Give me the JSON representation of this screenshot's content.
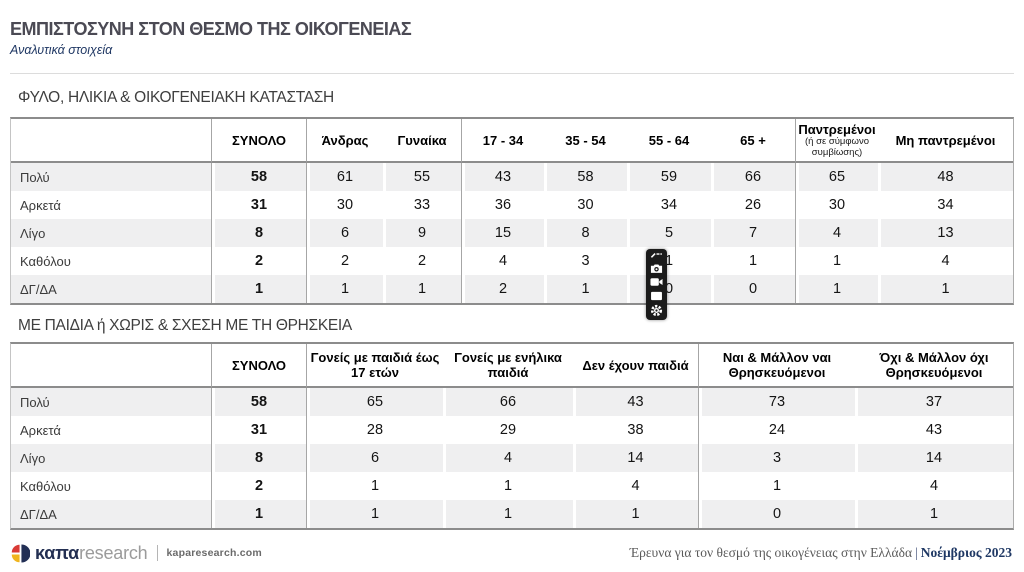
{
  "header": {
    "title": "ΕΜΠΙΣΤΟΣΥΝΗ ΣΤΟΝ ΘΕΣΜΟ ΤΗΣ ΟΙΚΟΓΕΝΕΙΑΣ",
    "subtitle": "Αναλυτικά στοιχεία"
  },
  "sections": [
    {
      "title": "ΦΥΛΟ, ΗΛΙΚΙΑ & ΟΙΚΟΓΕΝΕΙΑΚΗ ΚΑΤΑΣΤΑΣΗ",
      "table": {
        "columns": [
          {
            "label": ""
          },
          {
            "label": "ΣΥΝΟΛΟ"
          },
          {
            "label": "Άνδρας"
          },
          {
            "label": "Γυναίκα"
          },
          {
            "label": "17 - 34"
          },
          {
            "label": "35 - 54"
          },
          {
            "label": "55 - 64"
          },
          {
            "label": "65 +"
          },
          {
            "label": "Παντρεμένοι",
            "sub": "(ή σε σύμφωνο συμβίωσης)"
          },
          {
            "label": "Μη παντρεμένοι"
          }
        ],
        "rows": [
          {
            "label": "Πολύ",
            "values": [
              58,
              61,
              55,
              43,
              58,
              59,
              66,
              65,
              48
            ]
          },
          {
            "label": "Αρκετά",
            "values": [
              31,
              30,
              33,
              36,
              30,
              34,
              26,
              30,
              34
            ]
          },
          {
            "label": "Λίγο",
            "values": [
              8,
              6,
              9,
              15,
              8,
              5,
              7,
              4,
              13
            ]
          },
          {
            "label": "Καθόλου",
            "values": [
              2,
              2,
              2,
              4,
              3,
              1,
              1,
              1,
              4
            ]
          },
          {
            "label": "ΔΓ/ΔΑ",
            "values": [
              1,
              1,
              1,
              2,
              1,
              0,
              0,
              1,
              1
            ]
          }
        ]
      }
    },
    {
      "title": "ΜΕ ΠΑΙΔΙΑ ή ΧΩΡΙΣ & ΣΧΕΣΗ ΜΕ ΤΗ ΘΡΗΣΚΕΙΑ",
      "table": {
        "columns": [
          {
            "label": ""
          },
          {
            "label": "ΣΥΝΟΛΟ"
          },
          {
            "label": "Γονείς με παιδιά έως 17 ετών"
          },
          {
            "label": "Γονείς με ενήλικα παιδιά"
          },
          {
            "label": "Δεν έχουν παιδιά"
          },
          {
            "label": "Ναι & Μάλλον ναι Θρησκευόμενοι"
          },
          {
            "label": "Όχι & Μάλλον όχι Θρησκευόμενοι"
          }
        ],
        "rows": [
          {
            "label": "Πολύ",
            "values": [
              58,
              65,
              66,
              43,
              73,
              37
            ]
          },
          {
            "label": "Αρκετά",
            "values": [
              31,
              28,
              29,
              38,
              24,
              43
            ]
          },
          {
            "label": "Λίγο",
            "values": [
              8,
              6,
              4,
              14,
              3,
              14
            ]
          },
          {
            "label": "Καθόλου",
            "values": [
              2,
              1,
              1,
              4,
              1,
              4
            ]
          },
          {
            "label": "ΔΓ/ΔΑ",
            "values": [
              1,
              1,
              1,
              1,
              0,
              1
            ]
          }
        ]
      }
    }
  ],
  "overlay_toolbar": {
    "icons": [
      "pen-icon",
      "camera-icon",
      "video-camera-icon",
      "window-icon",
      "gear-icon"
    ]
  },
  "footer": {
    "logo_text_bold": "καπα",
    "logo_text_light": "research",
    "website": "kaparesearch.com",
    "source": "Έρευνα για τον θεσμό της οικογένειας στην Ελλάδα",
    "separator": "|",
    "date": "Νοέμβριος 2023"
  },
  "colors": {
    "title": "#4b4a54",
    "subtitle_navy": "#203864",
    "stripe": "#efeff0",
    "table_border": "#8c8c8c",
    "group_divider": "#a6a6a6",
    "logo_red": "#d93a35",
    "logo_yellow": "#f0b41e",
    "logo_navy": "#222f55"
  }
}
